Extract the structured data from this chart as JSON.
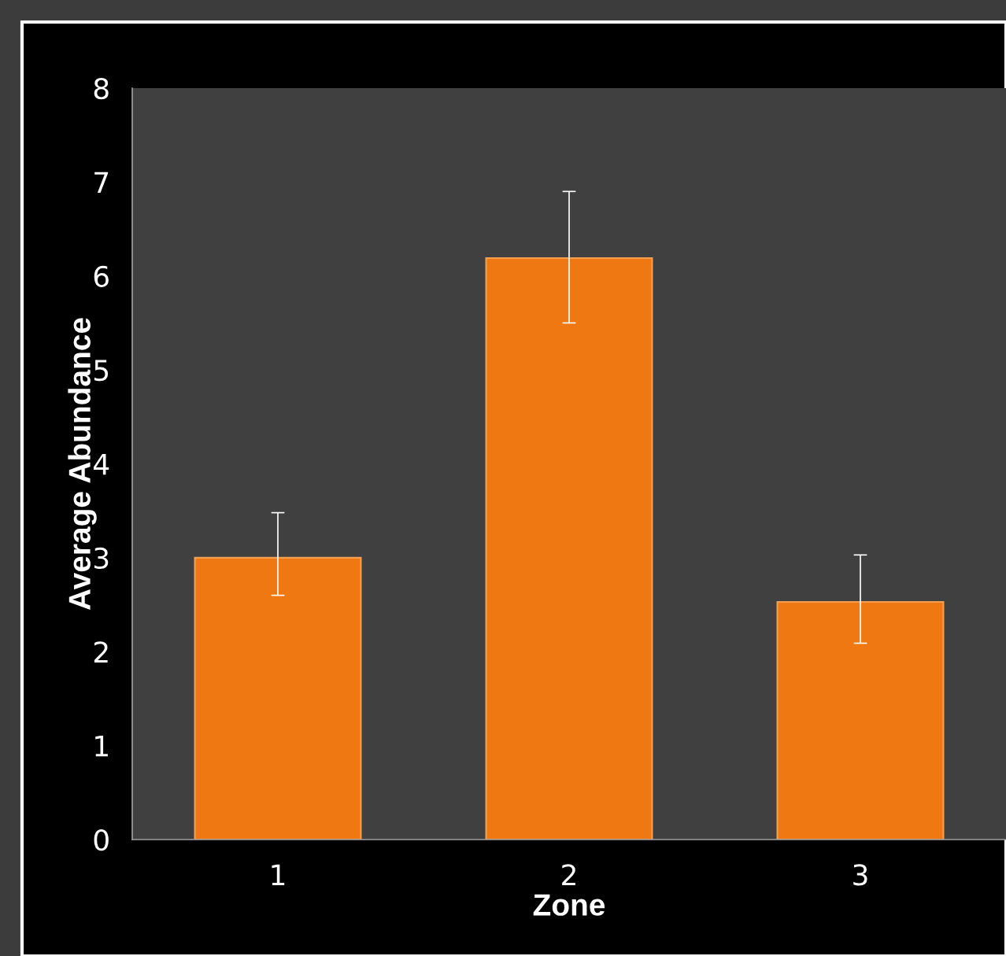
{
  "chart_data": {
    "type": "bar",
    "xlabel": "Zone",
    "ylabel": "Average Abundance",
    "categories": [
      "1",
      "2",
      "3"
    ],
    "values": [
      3.0,
      6.19,
      2.53
    ],
    "errors": [
      [
        2.6,
        3.48
      ],
      [
        5.5,
        6.9
      ],
      [
        2.09,
        3.03
      ]
    ],
    "color": "#f07812",
    "ylim": [
      0,
      8
    ],
    "yticks": [
      0,
      1,
      2,
      3,
      4,
      5,
      6,
      7,
      8
    ],
    "grid": false,
    "legend": false
  }
}
